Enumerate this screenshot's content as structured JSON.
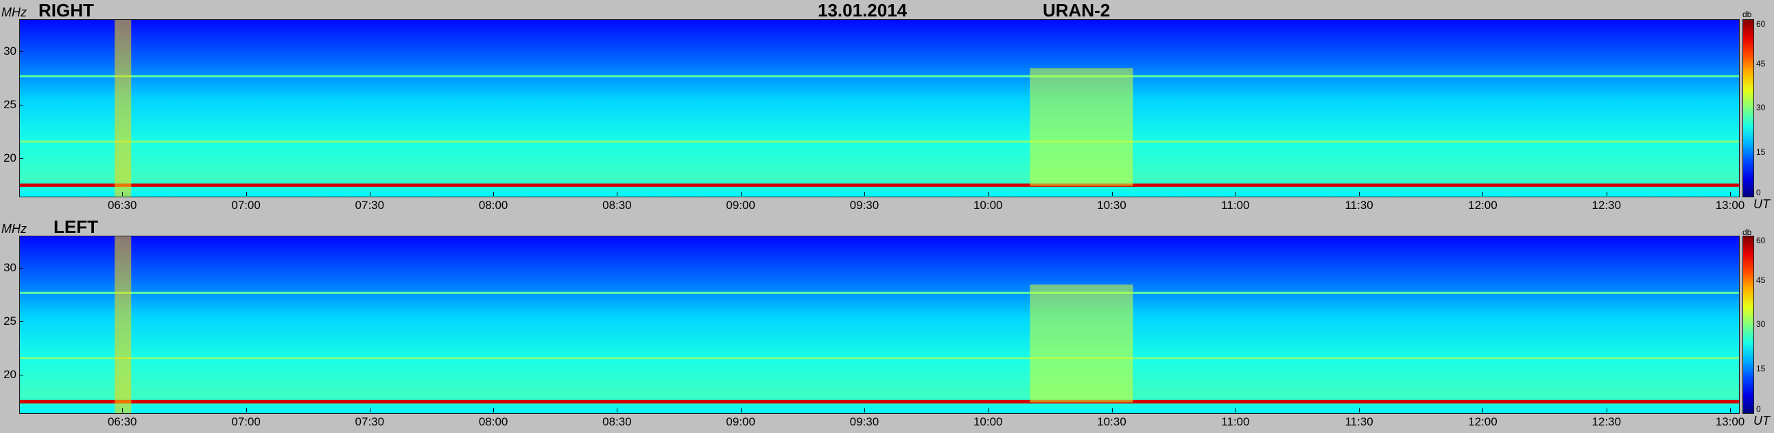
{
  "header": {
    "date": "13.01.2014",
    "instrument": "URAN-2"
  },
  "panels": [
    {
      "id": "right",
      "label": "RIGHT"
    },
    {
      "id": "left",
      "label": "LEFT"
    }
  ],
  "chart_data": {
    "type": "heatmap",
    "xlabel": "UT",
    "ylabel": "MHz",
    "x_ticks": [
      "06:30",
      "07:00",
      "07:30",
      "08:00",
      "08:30",
      "09:00",
      "09:30",
      "10:00",
      "10:30",
      "11:00",
      "11:30",
      "12:00",
      "12:30",
      "13:00"
    ],
    "y_ticks": [
      20,
      25,
      30
    ],
    "ylim": [
      16.5,
      33
    ],
    "xlim": [
      "06:05",
      "13:02"
    ],
    "colorbar": {
      "label": "db",
      "ticks": [
        0,
        15,
        30,
        45,
        60
      ],
      "range": [
        0,
        60
      ]
    },
    "features": [
      {
        "type": "band",
        "freq_mhz": 17.6,
        "level_db": 55,
        "t_start": "06:05",
        "t_end": "13:02"
      },
      {
        "type": "band",
        "freq_mhz": 27.7,
        "level_db": 28,
        "t_start": "06:05",
        "t_end": "13:02"
      },
      {
        "type": "band",
        "freq_mhz": 21.6,
        "level_db": 30,
        "t_start": "06:05",
        "t_end": "13:02"
      },
      {
        "type": "burst",
        "freq_mhz_range": [
          17.5,
          28.5
        ],
        "level_db": 35,
        "t_start": "10:10",
        "t_end": "10:35"
      },
      {
        "type": "burst",
        "freq_mhz_range": [
          16.5,
          33
        ],
        "level_db": 40,
        "t_start": "06:28",
        "t_end": "06:32"
      }
    ]
  }
}
